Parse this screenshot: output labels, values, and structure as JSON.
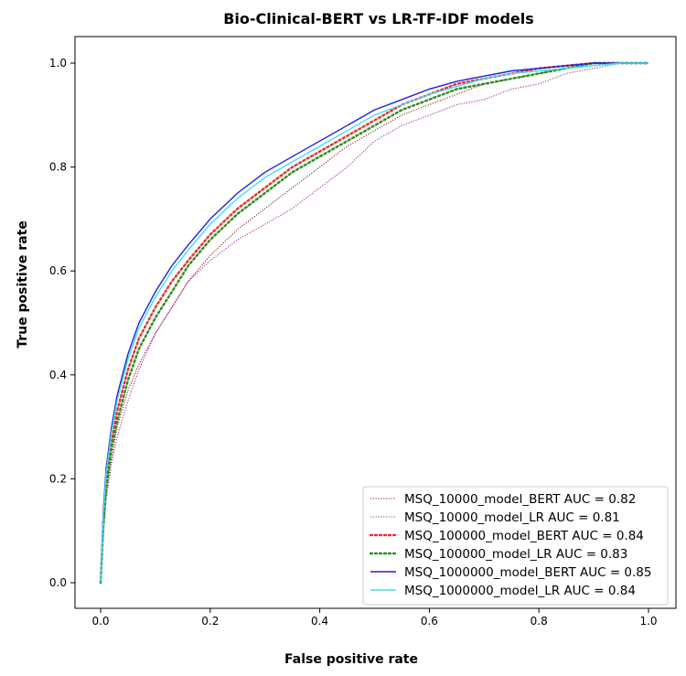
{
  "chart_data": {
    "type": "line",
    "title": "Bio-Clinical-BERT vs LR-TF-IDF models",
    "xlabel": "False positive rate",
    "ylabel": "True positive rate",
    "xlim": [
      -0.05,
      1.05
    ],
    "ylim": [
      -0.05,
      1.05
    ],
    "x_ticks": [
      "0.0",
      "0.2",
      "0.4",
      "0.6",
      "0.8",
      "1.0"
    ],
    "y_ticks": [
      "0.0",
      "0.2",
      "0.4",
      "0.6",
      "0.8",
      "1.0"
    ],
    "grid": false,
    "legend_position": "lower-right",
    "series": [
      {
        "name": "MSQ_10000_model_BERT AUC = 0.82",
        "color": "#8b1a1a",
        "style": "dotted-thin",
        "points": [
          [
            0,
            0
          ],
          [
            0.005,
            0.1
          ],
          [
            0.01,
            0.17
          ],
          [
            0.02,
            0.24
          ],
          [
            0.03,
            0.3
          ],
          [
            0.05,
            0.37
          ],
          [
            0.07,
            0.42
          ],
          [
            0.1,
            0.48
          ],
          [
            0.13,
            0.53
          ],
          [
            0.16,
            0.58
          ],
          [
            0.2,
            0.63
          ],
          [
            0.25,
            0.68
          ],
          [
            0.3,
            0.72
          ],
          [
            0.35,
            0.76
          ],
          [
            0.4,
            0.8
          ],
          [
            0.45,
            0.84
          ],
          [
            0.5,
            0.87
          ],
          [
            0.55,
            0.9
          ],
          [
            0.6,
            0.92
          ],
          [
            0.65,
            0.94
          ],
          [
            0.7,
            0.96
          ],
          [
            0.75,
            0.97
          ],
          [
            0.8,
            0.98
          ],
          [
            0.85,
            0.99
          ],
          [
            0.9,
            0.995
          ],
          [
            0.95,
            1.0
          ],
          [
            1.0,
            1.0
          ]
        ]
      },
      {
        "name": "MSQ_10000_model_LR AUC = 0.81",
        "color": "#a030a0",
        "style": "dotted-thin",
        "points": [
          [
            0,
            0
          ],
          [
            0.005,
            0.09
          ],
          [
            0.01,
            0.16
          ],
          [
            0.02,
            0.23
          ],
          [
            0.03,
            0.28
          ],
          [
            0.05,
            0.35
          ],
          [
            0.07,
            0.41
          ],
          [
            0.1,
            0.48
          ],
          [
            0.13,
            0.53
          ],
          [
            0.16,
            0.58
          ],
          [
            0.2,
            0.62
          ],
          [
            0.25,
            0.66
          ],
          [
            0.3,
            0.69
          ],
          [
            0.35,
            0.72
          ],
          [
            0.4,
            0.76
          ],
          [
            0.45,
            0.8
          ],
          [
            0.5,
            0.85
          ],
          [
            0.55,
            0.88
          ],
          [
            0.6,
            0.9
          ],
          [
            0.65,
            0.92
          ],
          [
            0.7,
            0.93
          ],
          [
            0.75,
            0.95
          ],
          [
            0.8,
            0.96
          ],
          [
            0.85,
            0.98
          ],
          [
            0.9,
            0.99
          ],
          [
            0.95,
            1.0
          ],
          [
            1.0,
            1.0
          ]
        ]
      },
      {
        "name": "MSQ_100000_model_BERT AUC = 0.84",
        "color": "#e8302a",
        "style": "dotted-thick",
        "points": [
          [
            0,
            0
          ],
          [
            0.005,
            0.12
          ],
          [
            0.01,
            0.19
          ],
          [
            0.02,
            0.27
          ],
          [
            0.03,
            0.33
          ],
          [
            0.05,
            0.41
          ],
          [
            0.07,
            0.47
          ],
          [
            0.1,
            0.53
          ],
          [
            0.13,
            0.58
          ],
          [
            0.16,
            0.62
          ],
          [
            0.2,
            0.67
          ],
          [
            0.25,
            0.72
          ],
          [
            0.3,
            0.76
          ],
          [
            0.35,
            0.8
          ],
          [
            0.4,
            0.83
          ],
          [
            0.45,
            0.86
          ],
          [
            0.5,
            0.89
          ],
          [
            0.55,
            0.92
          ],
          [
            0.6,
            0.94
          ],
          [
            0.65,
            0.96
          ],
          [
            0.7,
            0.97
          ],
          [
            0.75,
            0.98
          ],
          [
            0.8,
            0.99
          ],
          [
            0.85,
            0.995
          ],
          [
            0.9,
            1.0
          ],
          [
            0.95,
            1.0
          ],
          [
            1.0,
            1.0
          ]
        ]
      },
      {
        "name": "MSQ_100000_model_LR AUC = 0.83",
        "color": "#2e8b22",
        "style": "dotted-thick",
        "points": [
          [
            0,
            0
          ],
          [
            0.005,
            0.11
          ],
          [
            0.01,
            0.18
          ],
          [
            0.02,
            0.26
          ],
          [
            0.03,
            0.31
          ],
          [
            0.05,
            0.39
          ],
          [
            0.07,
            0.45
          ],
          [
            0.1,
            0.51
          ],
          [
            0.13,
            0.56
          ],
          [
            0.16,
            0.61
          ],
          [
            0.2,
            0.66
          ],
          [
            0.25,
            0.71
          ],
          [
            0.3,
            0.75
          ],
          [
            0.35,
            0.79
          ],
          [
            0.4,
            0.82
          ],
          [
            0.45,
            0.85
          ],
          [
            0.5,
            0.88
          ],
          [
            0.55,
            0.91
          ],
          [
            0.6,
            0.93
          ],
          [
            0.65,
            0.95
          ],
          [
            0.7,
            0.96
          ],
          [
            0.75,
            0.97
          ],
          [
            0.8,
            0.98
          ],
          [
            0.85,
            0.99
          ],
          [
            0.9,
            1.0
          ],
          [
            0.95,
            1.0
          ],
          [
            1.0,
            1.0
          ]
        ]
      },
      {
        "name": "MSQ_1000000_model_BERT AUC = 0.85",
        "color": "#2020e0",
        "style": "solid",
        "points": [
          [
            0,
            0
          ],
          [
            0.005,
            0.14
          ],
          [
            0.01,
            0.22
          ],
          [
            0.02,
            0.3
          ],
          [
            0.03,
            0.36
          ],
          [
            0.05,
            0.44
          ],
          [
            0.07,
            0.5
          ],
          [
            0.1,
            0.56
          ],
          [
            0.13,
            0.61
          ],
          [
            0.16,
            0.65
          ],
          [
            0.2,
            0.7
          ],
          [
            0.25,
            0.75
          ],
          [
            0.3,
            0.79
          ],
          [
            0.35,
            0.82
          ],
          [
            0.4,
            0.85
          ],
          [
            0.45,
            0.88
          ],
          [
            0.5,
            0.91
          ],
          [
            0.55,
            0.93
          ],
          [
            0.6,
            0.95
          ],
          [
            0.65,
            0.965
          ],
          [
            0.7,
            0.975
          ],
          [
            0.75,
            0.985
          ],
          [
            0.8,
            0.99
          ],
          [
            0.85,
            0.995
          ],
          [
            0.9,
            1.0
          ],
          [
            0.95,
            1.0
          ],
          [
            1.0,
            1.0
          ]
        ]
      },
      {
        "name": "MSQ_1000000_model_LR AUC = 0.84",
        "color": "#40e0f0",
        "style": "solid",
        "points": [
          [
            0,
            0
          ],
          [
            0.005,
            0.13
          ],
          [
            0.01,
            0.21
          ],
          [
            0.02,
            0.29
          ],
          [
            0.03,
            0.35
          ],
          [
            0.05,
            0.43
          ],
          [
            0.07,
            0.49
          ],
          [
            0.1,
            0.55
          ],
          [
            0.13,
            0.6
          ],
          [
            0.16,
            0.64
          ],
          [
            0.2,
            0.69
          ],
          [
            0.25,
            0.74
          ],
          [
            0.3,
            0.78
          ],
          [
            0.35,
            0.81
          ],
          [
            0.4,
            0.84
          ],
          [
            0.45,
            0.87
          ],
          [
            0.5,
            0.9
          ],
          [
            0.55,
            0.92
          ],
          [
            0.6,
            0.94
          ],
          [
            0.65,
            0.955
          ],
          [
            0.7,
            0.97
          ],
          [
            0.75,
            0.98
          ],
          [
            0.8,
            0.985
          ],
          [
            0.85,
            0.99
          ],
          [
            0.9,
            0.995
          ],
          [
            0.95,
            1.0
          ],
          [
            1.0,
            1.0
          ]
        ]
      }
    ]
  }
}
